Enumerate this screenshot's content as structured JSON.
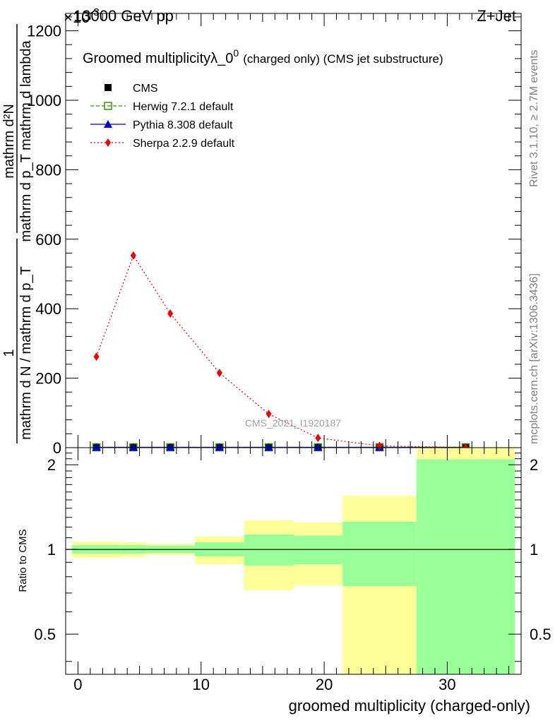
{
  "header": {
    "energy": "13000 GeV pp",
    "process": "Z+Jet",
    "exponent": "×10",
    "exponent_power": "-3"
  },
  "side_labels": {
    "rivet": "Rivet 3.1.10, ≥ 2.7M events",
    "mcplots": "mcplots.cern.ch [arXiv:1306.3436]"
  },
  "watermark": "CMS_2021_I1920187",
  "chart_data": [
    {
      "type": "line",
      "title": "Groomed multiplicity",
      "title_symbol": "λ_0",
      "title_sup": "0",
      "title_suffix": "(charged only) (CMS jet substructure)",
      "ylabel_numerator": "mathrm d²N",
      "ylabel_denominator": "mathrm d p_T mathrm d lambda",
      "ylabel_prefix_num": "1",
      "ylabel_prefix_den": "mathrm d N / mathrm d p_T",
      "xlim": [
        -1,
        36
      ],
      "ylim": [
        0,
        1250
      ],
      "y_ticks": [
        0,
        200,
        400,
        600,
        800,
        1000,
        1200
      ],
      "y_tick_labels": [
        "0",
        "200",
        "400",
        "600",
        "800",
        "1000",
        "1200"
      ],
      "legend": {
        "placement": "top-left",
        "entries": [
          {
            "label": "CMS",
            "color": "#000000",
            "marker": "square-filled",
            "line": "none"
          },
          {
            "label": "Herwig 7.2.1 default",
            "color": "#339900",
            "marker": "square-open",
            "line": "dashed"
          },
          {
            "label": "Pythia 8.308 default",
            "color": "#0000cc",
            "marker": "triangle",
            "line": "solid"
          },
          {
            "label": "Sherpa 2.2.9 default",
            "color": "#ee0000",
            "marker": "diamond",
            "line": "dotted"
          }
        ]
      },
      "series": [
        {
          "name": "CMS",
          "x": [
            1.5,
            4.5,
            7.5,
            11.5,
            15.5,
            19.5,
            24.5,
            31.5
          ],
          "y": [
            1,
            1,
            1,
            1,
            1,
            1,
            1,
            1
          ]
        },
        {
          "name": "Herwig 7.2.1 default",
          "x": [
            1.5,
            4.5,
            7.5,
            11.5,
            15.5,
            19.5,
            24.5,
            31.5
          ],
          "y": [
            1,
            1,
            1,
            1,
            1,
            1,
            1,
            1
          ]
        },
        {
          "name": "Pythia 8.308 default",
          "x": [
            1.5,
            4.5,
            7.5,
            11.5,
            15.5,
            19.5,
            24.5,
            31.5
          ],
          "y": [
            1,
            1,
            1,
            1,
            1,
            1,
            1,
            1
          ]
        },
        {
          "name": "Sherpa 2.2.9 default",
          "x": [
            1.5,
            4.5,
            7.5,
            11.5,
            15.5,
            19.5,
            24.5,
            31.5
          ],
          "y": [
            262,
            553,
            386,
            215,
            97,
            28,
            5,
            0.5
          ]
        }
      ]
    },
    {
      "type": "area",
      "ylabel": "Ratio to CMS",
      "xlabel": "groomed multiplicity (charged-only)",
      "xlim": [
        -1,
        36
      ],
      "ylim": [
        0.36,
        2.3
      ],
      "x_ticks": [
        0,
        10,
        20,
        30
      ],
      "x_tick_labels": [
        "0",
        "10",
        "20",
        "30"
      ],
      "y_ticks": [
        0.5,
        1,
        2
      ],
      "y_tick_labels": [
        "0.5",
        "1",
        "2"
      ],
      "reference_line": 1,
      "bins": [
        {
          "lo": -0.5,
          "hi": 3.5,
          "stat_lo": 0.965,
          "stat_hi": 1.035,
          "tot_lo": 0.935,
          "tot_hi": 1.065
        },
        {
          "lo": 3.5,
          "hi": 5.5,
          "stat_lo": 0.965,
          "stat_hi": 1.035,
          "tot_lo": 0.94,
          "tot_hi": 1.06
        },
        {
          "lo": 5.5,
          "hi": 9.5,
          "stat_lo": 0.97,
          "stat_hi": 1.03,
          "tot_lo": 0.955,
          "tot_hi": 1.045
        },
        {
          "lo": 9.5,
          "hi": 13.5,
          "stat_lo": 0.945,
          "stat_hi": 1.06,
          "tot_lo": 0.885,
          "tot_hi": 1.11
        },
        {
          "lo": 13.5,
          "hi": 17.5,
          "stat_lo": 0.875,
          "stat_hi": 1.13,
          "tot_lo": 0.715,
          "tot_hi": 1.27
        },
        {
          "lo": 17.5,
          "hi": 21.5,
          "stat_lo": 0.885,
          "stat_hi": 1.12,
          "tot_lo": 0.745,
          "tot_hi": 1.245
        },
        {
          "lo": 21.5,
          "hi": 27.5,
          "stat_lo": 0.74,
          "stat_hi": 1.255,
          "tot_lo": 0.36,
          "tot_hi": 1.55
        },
        {
          "lo": 27.5,
          "hi": 35.5,
          "stat_lo": 0.36,
          "stat_hi": 2.09,
          "tot_lo": 0.36,
          "tot_hi": 2.3
        }
      ],
      "colors": {
        "stat": "#99ff99",
        "total": "#ffff99"
      }
    }
  ]
}
